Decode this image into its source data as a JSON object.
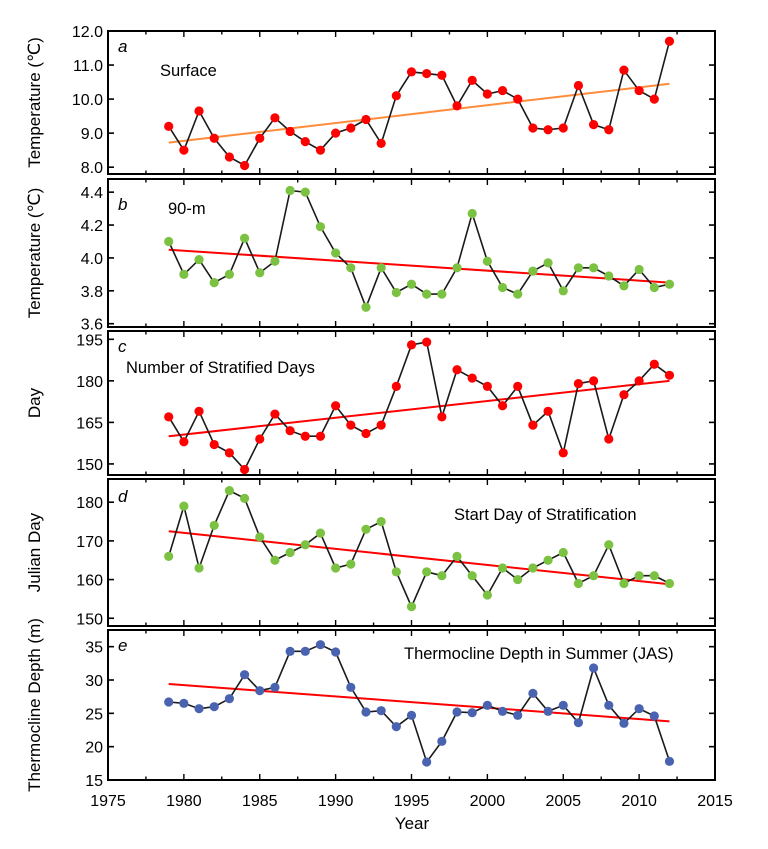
{
  "figure": {
    "xlabel": "Year",
    "xlim": [
      1975,
      2015
    ],
    "xticks": [
      1975,
      1980,
      1985,
      1990,
      1995,
      2000,
      2005,
      2010,
      2015
    ]
  },
  "chart_data": [
    {
      "type": "line",
      "panel": "a",
      "title": "Surface",
      "ylabel": "Temperature (℃)",
      "ylim": [
        7.8,
        12.0
      ],
      "yticks": [
        8.0,
        9.0,
        10.0,
        11.0,
        12.0
      ],
      "yticklabels": [
        "8.0",
        "9.0",
        "10.0",
        "11.0",
        "12.0"
      ],
      "marker_color": "#ff0000",
      "trend_color": "#ff8c3a",
      "x": [
        1979,
        1980,
        1981,
        1982,
        1983,
        1984,
        1985,
        1986,
        1987,
        1988,
        1989,
        1990,
        1991,
        1992,
        1993,
        1994,
        1995,
        1996,
        1997,
        1998,
        1999,
        2000,
        2001,
        2002,
        2003,
        2004,
        2005,
        2006,
        2007,
        2008,
        2009,
        2010,
        2011,
        2012
      ],
      "y": [
        9.2,
        8.5,
        9.65,
        8.85,
        8.3,
        8.05,
        8.85,
        9.45,
        9.05,
        8.75,
        8.5,
        9.0,
        9.15,
        9.4,
        8.7,
        10.1,
        10.8,
        10.75,
        10.7,
        9.8,
        10.55,
        10.15,
        10.25,
        10.0,
        9.15,
        9.1,
        9.15,
        10.4,
        9.25,
        9.1,
        10.85,
        10.25,
        10.0,
        11.7
      ],
      "trend": {
        "x": [
          1979,
          2012
        ],
        "y": [
          8.72,
          10.45
        ]
      }
    },
    {
      "type": "line",
      "panel": "b",
      "title": "90-m",
      "ylabel": "Temperature (℃)",
      "ylim": [
        3.58,
        4.48
      ],
      "yticks": [
        3.6,
        3.8,
        4.0,
        4.2,
        4.4
      ],
      "yticklabels": [
        "3.6",
        "3.8",
        "4.0",
        "4.2",
        "4.4"
      ],
      "marker_color": "#7bc142",
      "trend_color": "#ff0000",
      "x": [
        1979,
        1980,
        1981,
        1982,
        1983,
        1984,
        1985,
        1986,
        1987,
        1988,
        1989,
        1990,
        1991,
        1992,
        1993,
        1994,
        1995,
        1996,
        1997,
        1998,
        1999,
        2000,
        2001,
        2002,
        2003,
        2004,
        2005,
        2006,
        2007,
        2008,
        2009,
        2010,
        2011,
        2012
      ],
      "y": [
        4.1,
        3.9,
        3.99,
        3.85,
        3.9,
        4.12,
        3.91,
        3.98,
        4.41,
        4.4,
        4.19,
        4.03,
        3.94,
        3.7,
        3.94,
        3.79,
        3.84,
        3.78,
        3.78,
        3.94,
        4.27,
        3.98,
        3.82,
        3.78,
        3.92,
        3.97,
        3.8,
        3.94,
        3.94,
        3.89,
        3.83,
        3.93,
        3.82,
        3.84
      ],
      "trend": {
        "x": [
          1979,
          2012
        ],
        "y": [
          4.05,
          3.85
        ]
      }
    },
    {
      "type": "line",
      "panel": "c",
      "title": "Number of Stratified Days",
      "ylabel": "Day",
      "ylim": [
        146,
        198
      ],
      "yticks": [
        150,
        165,
        180,
        195
      ],
      "yticklabels": [
        "150",
        "165",
        "180",
        "195"
      ],
      "marker_color": "#ff0000",
      "trend_color": "#ff0000",
      "x": [
        1979,
        1980,
        1981,
        1982,
        1983,
        1984,
        1985,
        1986,
        1987,
        1988,
        1989,
        1990,
        1991,
        1992,
        1993,
        1994,
        1995,
        1996,
        1997,
        1998,
        1999,
        2000,
        2001,
        2002,
        2003,
        2004,
        2005,
        2006,
        2007,
        2008,
        2009,
        2010,
        2011,
        2012
      ],
      "y": [
        167,
        158,
        169,
        157,
        154,
        148,
        159,
        168,
        162,
        160,
        160,
        171,
        164,
        161,
        164,
        178,
        193,
        194,
        167,
        184,
        181,
        178,
        171,
        178,
        164,
        169,
        154,
        179,
        180,
        159,
        175,
        180,
        186,
        182
      ],
      "trend": {
        "x": [
          1979,
          2012
        ],
        "y": [
          160,
          180
        ]
      }
    },
    {
      "type": "line",
      "panel": "d",
      "title": "Start Day of Stratification",
      "ylabel": "Julian Day",
      "ylim": [
        148,
        186
      ],
      "yticks": [
        150,
        160,
        170,
        180
      ],
      "yticklabels": [
        "150",
        "160",
        "170",
        "180"
      ],
      "marker_color": "#7bc142",
      "trend_color": "#ff0000",
      "x": [
        1979,
        1980,
        1981,
        1982,
        1983,
        1984,
        1985,
        1986,
        1987,
        1988,
        1989,
        1990,
        1991,
        1992,
        1993,
        1994,
        1995,
        1996,
        1997,
        1998,
        1999,
        2000,
        2001,
        2002,
        2003,
        2004,
        2005,
        2006,
        2007,
        2008,
        2009,
        2010,
        2011,
        2012
      ],
      "y": [
        166,
        179,
        163,
        174,
        183,
        181,
        171,
        165,
        167,
        169,
        172,
        163,
        164,
        173,
        175,
        162,
        153,
        162,
        161,
        166,
        161,
        156,
        163,
        160,
        163,
        165,
        167,
        159,
        161,
        169,
        159,
        161,
        161,
        159
      ],
      "trend": {
        "x": [
          1979,
          2012
        ],
        "y": [
          172.5,
          158.8
        ]
      }
    },
    {
      "type": "line",
      "panel": "e",
      "title": "Thermocline Depth in Summer (JAS)",
      "ylabel": "Thermocline Depth (m)",
      "ylim": [
        15,
        37.5
      ],
      "yticks": [
        15,
        20,
        25,
        30,
        35
      ],
      "yticklabels": [
        "15",
        "20",
        "25",
        "30",
        "35"
      ],
      "marker_color": "#4a63b0",
      "trend_color": "#ff0000",
      "x": [
        1979,
        1980,
        1981,
        1982,
        1983,
        1984,
        1985,
        1986,
        1987,
        1988,
        1989,
        1990,
        1991,
        1992,
        1993,
        1994,
        1995,
        1996,
        1997,
        1998,
        1999,
        2000,
        2001,
        2002,
        2003,
        2004,
        2005,
        2006,
        2007,
        2008,
        2009,
        2010,
        2011,
        2012
      ],
      "y": [
        26.7,
        26.5,
        25.7,
        26.0,
        27.2,
        30.8,
        28.4,
        28.9,
        34.3,
        34.3,
        35.3,
        34.2,
        28.9,
        25.2,
        25.4,
        23.0,
        24.7,
        17.7,
        20.8,
        25.2,
        25.1,
        26.2,
        25.3,
        24.7,
        28.0,
        25.3,
        26.2,
        23.6,
        31.8,
        26.2,
        23.5,
        25.7,
        24.6,
        17.8
      ],
      "trend": {
        "x": [
          1979,
          2012
        ],
        "y": [
          29.4,
          23.8
        ]
      }
    }
  ]
}
